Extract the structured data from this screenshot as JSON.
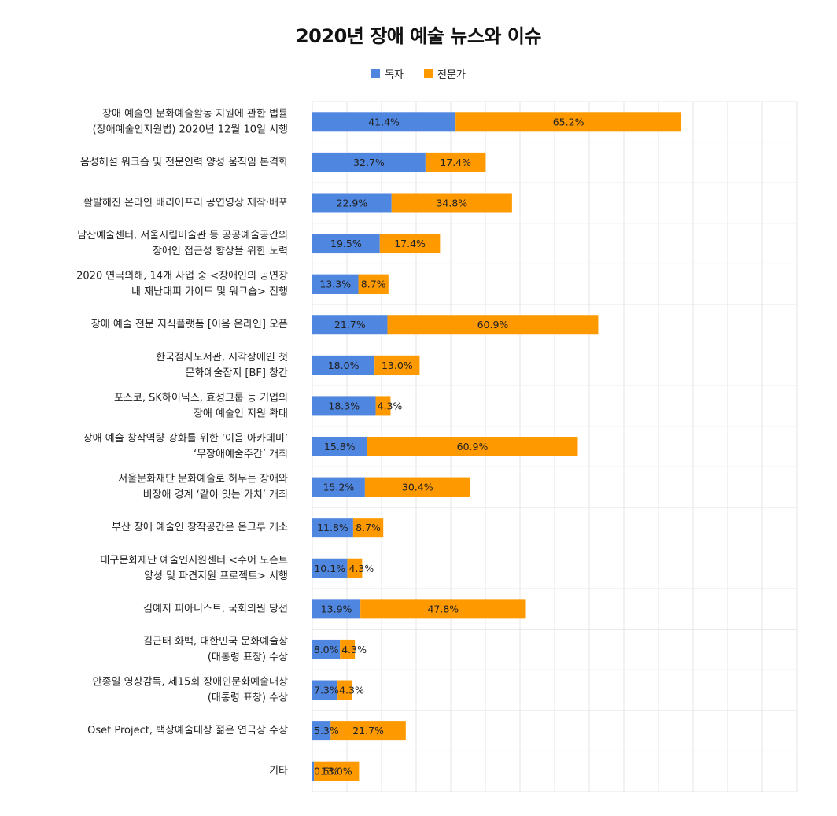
{
  "chart_data": {
    "type": "bar",
    "orientation": "horizontal",
    "stacked": true,
    "title": "2020년 장애 예술 뉴스와 이슈",
    "legend_position": "top",
    "grid": true,
    "xlim": [
      0,
      140
    ],
    "categories": [
      [
        "장애 예술인 문화예술활동 지원에 관한 법률",
        "(장애예술인지원법) 2020년 12월 10일 시행"
      ],
      [
        "음성해설 워크숍 및 전문인력 양성 움직임 본격화"
      ],
      [
        "활발해진 온라인 배리어프리 공연영상 제작·배포"
      ],
      [
        "남산예술센터, 서울시립미술관 등 공공예술공간의",
        "장애인 접근성 향상을 위한 노력"
      ],
      [
        "2020 연극의해, 14개 사업 중 <장애인의 공연장",
        "내 재난대피 가이드 및 워크숍> 진행"
      ],
      [
        "장애 예술 전문 지식플랫폼 [이음 온라인] 오픈"
      ],
      [
        "한국점자도서관, 시각장애인 첫",
        "문화예술잡지 [BF] 창간"
      ],
      [
        "포스코, SK하이닉스, 효성그룹 등 기업의",
        "장애 예술인 지원 확대"
      ],
      [
        "장애 예술 창작역량 강화를 위한 ‘이음 아카데미’",
        "‘무장애예술주간’ 개최"
      ],
      [
        "서울문화재단 문화예술로 허무는 장애와",
        "비장애 경계 ‘같이 잇는 가치’ 개최"
      ],
      [
        "부산 장애 예술인 창작공간은 온그루 개소"
      ],
      [
        "대구문화재단 예술인지원센터 <수어 도슨트",
        "양성 및 파견지원 프로젝트> 시행"
      ],
      [
        "김예지 피아니스트, 국회의원 당선"
      ],
      [
        "김근태 화백, 대한민국 문화예술상",
        "(대통령 표창) 수상"
      ],
      [
        "안종일 영상감독, 제15회 장애인문화예술대상",
        "(대통령 표창) 수상"
      ],
      [
        "Oset Project, 백상예술대상 젊은 연극상 수상"
      ],
      [
        "기타"
      ]
    ],
    "series": [
      {
        "name": "독자",
        "color": "#4F86E0",
        "values": [
          41.4,
          32.7,
          22.9,
          19.5,
          13.3,
          21.7,
          18.0,
          18.3,
          15.8,
          15.2,
          11.8,
          10.1,
          13.9,
          8.0,
          7.3,
          5.3,
          0.5
        ],
        "labels": [
          "41.4%",
          "32.7%",
          "22.9%",
          "19.5%",
          "13.3%",
          "21.7%",
          "18.0%",
          "18.3%",
          "15.8%",
          "15.2%",
          "11.8%",
          "10.1%",
          "13.9%",
          "8.0%",
          "7.3%",
          "5.3%",
          "0.5%"
        ]
      },
      {
        "name": "전문가",
        "color": "#FF9900",
        "values": [
          65.2,
          17.4,
          34.8,
          17.4,
          8.7,
          60.9,
          13.0,
          4.3,
          60.9,
          30.4,
          8.7,
          4.3,
          47.8,
          4.3,
          4.3,
          21.7,
          13.0
        ],
        "labels": [
          "65.2%",
          "17.4%",
          "34.8%",
          "17.4%",
          "8.7%",
          "60.9%",
          "13.0%",
          "4.3%",
          "60.9%",
          "30.4%",
          "8.7%",
          "4.3%",
          "47.8%",
          "4.3%",
          "4.3%",
          "21.7%",
          "13.0%"
        ]
      }
    ]
  }
}
